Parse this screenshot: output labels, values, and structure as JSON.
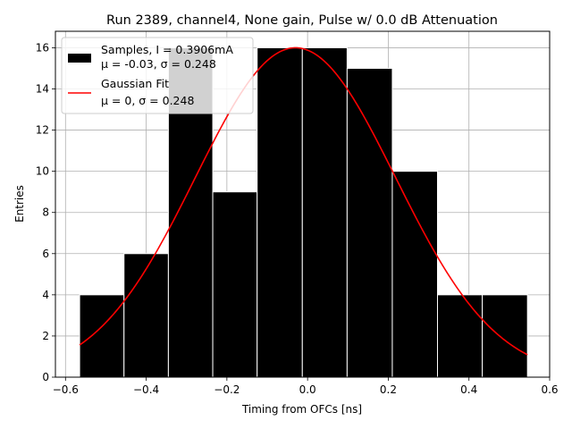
{
  "chart_data": {
    "type": "bar",
    "title": "Run 2389, channel4, None gain, Pulse w/ 0.0 dB Attenuation",
    "xlabel": "Timing from OFCs [ns]",
    "ylabel": "Entries",
    "xlim": [
      -0.625,
      0.6
    ],
    "ylim": [
      0,
      16.8
    ],
    "xticks": [
      -0.6,
      -0.4,
      -0.2,
      0.0,
      0.2,
      0.4,
      0.6
    ],
    "xtick_labels": [
      "−0.6",
      "−0.4",
      "−0.2",
      "0.0",
      "0.2",
      "0.4",
      "0.6"
    ],
    "yticks": [
      0,
      2,
      4,
      6,
      8,
      10,
      12,
      14,
      16
    ],
    "ytick_labels": [
      "0",
      "2",
      "4",
      "6",
      "8",
      "10",
      "12",
      "14",
      "16"
    ],
    "grid": true,
    "bin_edges": [
      -0.565,
      -0.455,
      -0.345,
      -0.235,
      -0.125,
      -0.013,
      0.098,
      0.21,
      0.322,
      0.433,
      0.545
    ],
    "counts": [
      4,
      6,
      16,
      9,
      16,
      16,
      15,
      10,
      4,
      4
    ],
    "bar_color": "#000000",
    "bar_edge_color": "#ffffff",
    "fit": {
      "name": "Gaussian Fit",
      "type": "gaussian",
      "amplitude": 16,
      "mu": -0.03,
      "sigma": 0.248,
      "x_range": [
        -0.565,
        0.545
      ],
      "color": "#ff0000"
    },
    "legend": {
      "placement": "top-left",
      "entries": [
        {
          "line1": "Samples, I = 0.3906mA",
          "line2": "μ = -0.03, σ = 0.248"
        },
        {
          "line1": "Gaussian Fit",
          "line2": "μ = 0, σ = 0.248"
        }
      ]
    }
  }
}
